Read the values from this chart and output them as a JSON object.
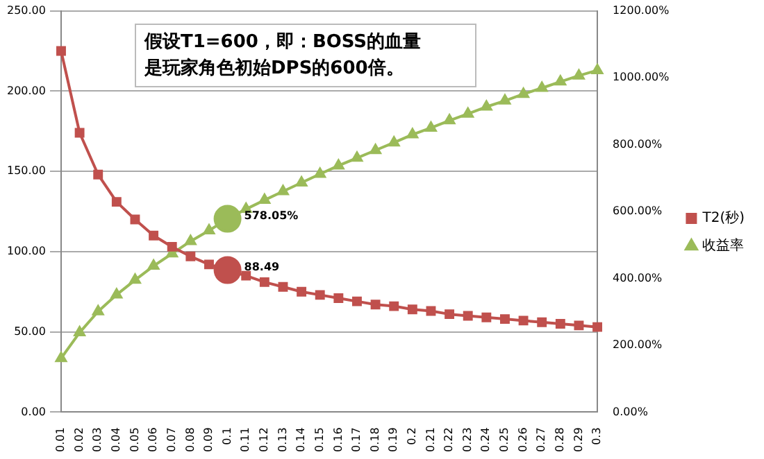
{
  "chart_data": {
    "type": "line",
    "categories": [
      "0.01",
      "0.02",
      "0.03",
      "0.04",
      "0.05",
      "0.06",
      "0.07",
      "0.08",
      "0.09",
      "0.1",
      "0.11",
      "0.12",
      "0.13",
      "0.14",
      "0.15",
      "0.16",
      "0.17",
      "0.18",
      "0.19",
      "0.2",
      "0.21",
      "0.22",
      "0.23",
      "0.24",
      "0.25",
      "0.26",
      "0.27",
      "0.28",
      "0.29",
      "0.3"
    ],
    "series": [
      {
        "name": "T2(秒)",
        "color": "#c0504d",
        "marker": "square",
        "values": [
          225,
          174,
          148,
          131,
          120,
          110,
          103,
          97,
          92,
          88.49,
          85,
          81,
          78,
          75,
          73,
          71,
          69,
          67,
          66,
          64,
          63,
          61,
          60,
          59,
          58,
          57,
          56,
          55,
          54,
          53
        ],
        "value_labels": [
          null,
          null,
          null,
          null,
          null,
          null,
          null,
          null,
          null,
          "88.49",
          null,
          null,
          null,
          null,
          null,
          null,
          null,
          null,
          null,
          null,
          null,
          null,
          null,
          null,
          null,
          null,
          null,
          null,
          null,
          null
        ]
      },
      {
        "name": "收益率",
        "color": "#9bbb59",
        "marker": "triangle",
        "axis": "y2",
        "values": [
          161,
          238,
          301,
          351,
          395,
          437,
          474,
          511,
          543,
          578.05,
          607,
          634,
          660,
          686,
          712,
          737,
          760,
          783,
          806,
          830,
          850,
          872,
          892,
          913,
          931,
          951,
          969,
          988,
          1006,
          1022
        ],
        "value_labels": [
          null,
          null,
          null,
          null,
          null,
          null,
          null,
          null,
          null,
          "578.05%",
          null,
          null,
          null,
          null,
          null,
          null,
          null,
          null,
          null,
          null,
          null,
          null,
          null,
          null,
          null,
          null,
          null,
          null,
          null,
          null
        ]
      }
    ],
    "ylim": [
      0,
      250
    ],
    "yticks": [
      {
        "value": 0,
        "label": "0.00"
      },
      {
        "value": 50,
        "label": "50.00"
      },
      {
        "value": 100,
        "label": "100.00"
      },
      {
        "value": 150,
        "label": "150.00"
      },
      {
        "value": 200,
        "label": "200.00"
      },
      {
        "value": 250,
        "label": "250.00"
      }
    ],
    "y2lim": [
      0,
      1200
    ],
    "y2ticks": [
      {
        "value": 0,
        "label": "0.00%"
      },
      {
        "value": 200,
        "label": "200.00%"
      },
      {
        "value": 400,
        "label": "400.00%"
      },
      {
        "value": 600,
        "label": "600.00%"
      },
      {
        "value": 800,
        "label": "800.00%"
      },
      {
        "value": 1000,
        "label": "1000.00%"
      },
      {
        "value": 1200,
        "label": "1200.00%"
      }
    ],
    "grid": "y",
    "legend": "right",
    "line_style": "solid",
    "annotations": [
      "假设T1=600，即：BOSS的血量是玩家角色初始DPS的600倍。"
    ]
  }
}
